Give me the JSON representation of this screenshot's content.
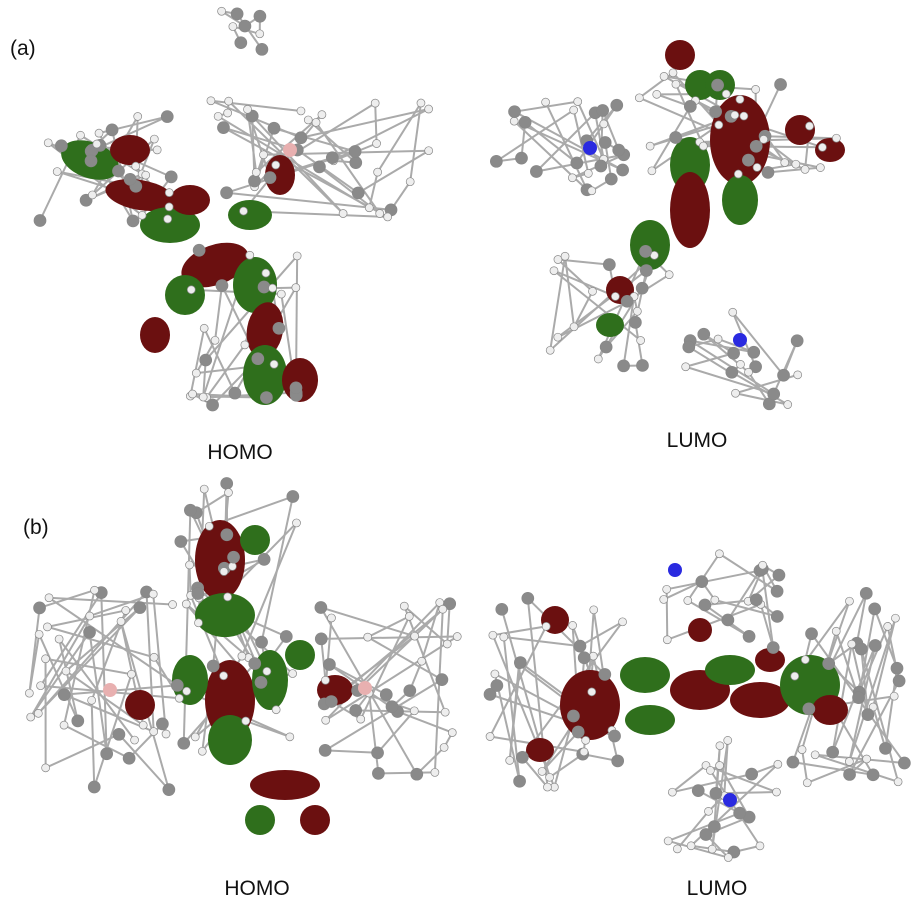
{
  "panels": [
    {
      "label": "(a)",
      "orbitals": [
        {
          "label": "HOMO"
        },
        {
          "label": "LUMO"
        }
      ]
    },
    {
      "label": "(b)",
      "orbitals": [
        {
          "label": "HOMO"
        },
        {
          "label": "LUMO"
        }
      ]
    }
  ]
}
